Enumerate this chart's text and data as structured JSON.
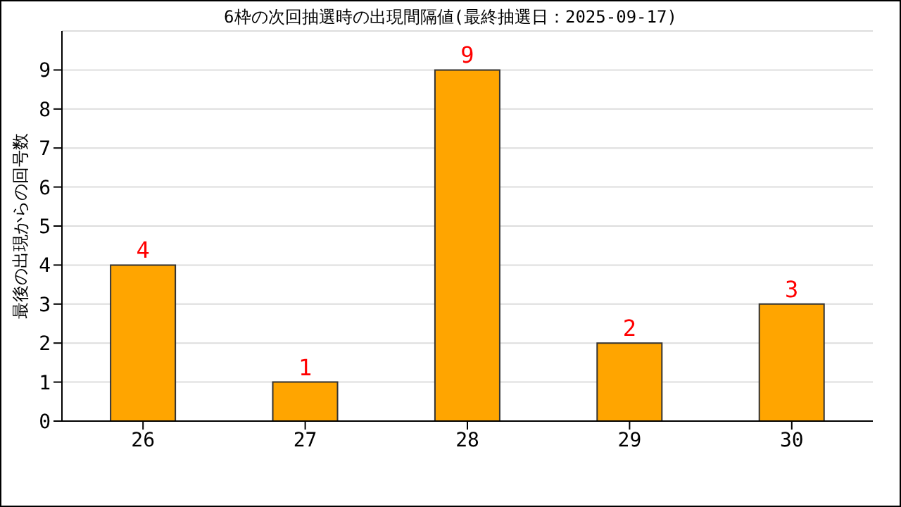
{
  "chart_data": {
    "type": "bar",
    "title": "6枠の次回抽選時の出現間隔値(最終抽選日：2025-09-17)",
    "ylabel": "最後の出現からの回号数",
    "categories": [
      "26",
      "27",
      "28",
      "29",
      "30"
    ],
    "values": [
      4,
      1,
      9,
      2,
      3
    ],
    "color": "#ffa500",
    "ylim": [
      0,
      10
    ],
    "yticks": [
      0,
      1,
      2,
      3,
      4,
      5,
      6,
      7,
      8,
      9
    ],
    "grid": "y",
    "data_labels": true
  }
}
